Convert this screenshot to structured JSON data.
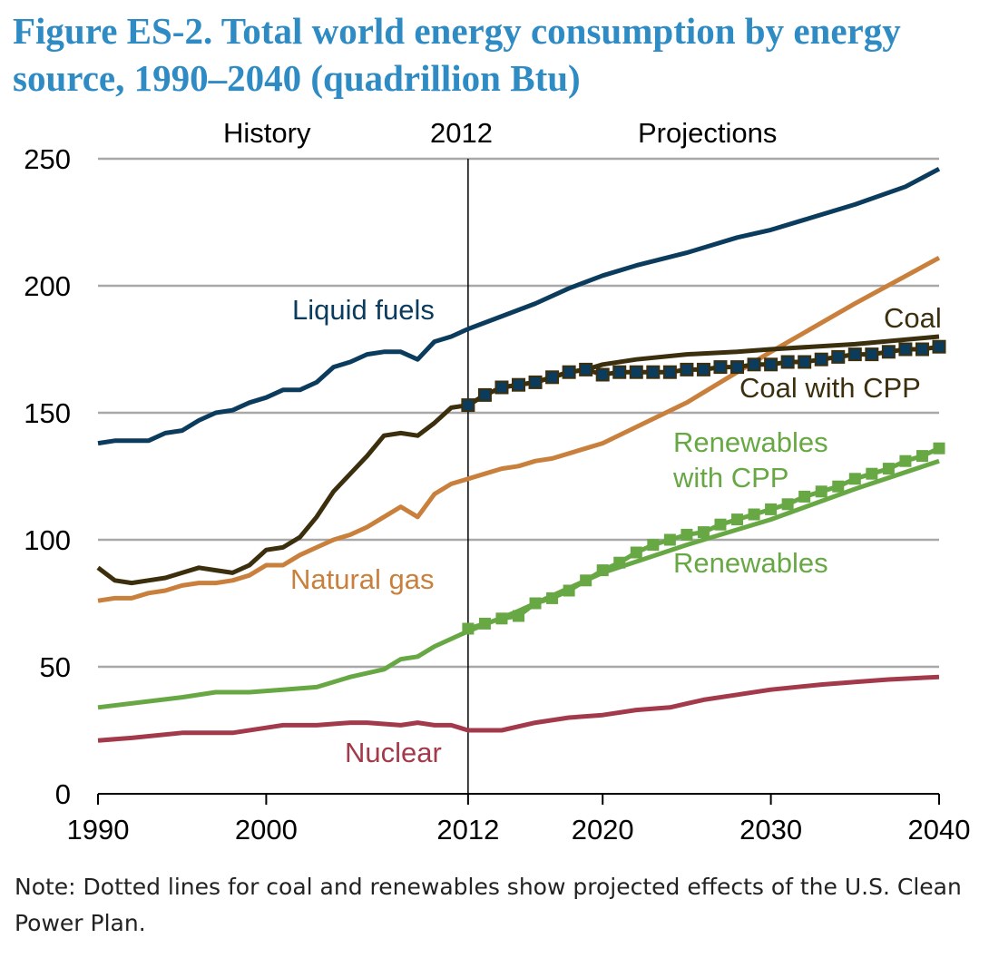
{
  "chart_data": {
    "type": "line",
    "title": "Figure ES-2. Total world energy consumption by energy source, 1990–2040 (quadrillion Btu)",
    "xlabel": "",
    "ylabel": "",
    "xlim": [
      1990,
      2040
    ],
    "ylim": [
      0,
      250
    ],
    "x_ticks": [
      "1990",
      "2000",
      "2012",
      "2020",
      "2030",
      "2040"
    ],
    "y_ticks": [
      "0",
      "50",
      "100",
      "150",
      "200",
      "250"
    ],
    "grid": "horizontal",
    "divider": {
      "x": 2012,
      "labels": {
        "left": "History",
        "center": "2012",
        "right": "Projections"
      }
    },
    "colors": {
      "liquid": "#0B3C5D",
      "coal": "#3B2F0E",
      "gas": "#C8803C",
      "renew": "#67A844",
      "nuclear": "#A33A4B"
    },
    "series": [
      {
        "name": "Liquid fuels",
        "color": "#0B3C5D",
        "x": [
          1990,
          1991,
          1992,
          1993,
          1994,
          1995,
          1996,
          1997,
          1998,
          1999,
          2000,
          2001,
          2002,
          2003,
          2004,
          2005,
          2006,
          2007,
          2008,
          2009,
          2010,
          2011,
          2012,
          2014,
          2016,
          2018,
          2020,
          2022,
          2025,
          2028,
          2030,
          2032,
          2035,
          2038,
          2040
        ],
        "y": [
          138,
          139,
          139,
          139,
          142,
          143,
          147,
          150,
          151,
          154,
          156,
          159,
          159,
          162,
          168,
          170,
          173,
          174,
          174,
          171,
          178,
          180,
          183,
          188,
          193,
          199,
          204,
          208,
          213,
          219,
          222,
          226,
          232,
          239,
          246
        ]
      },
      {
        "name": "Coal",
        "color": "#3B2F0E",
        "x": [
          1990,
          1991,
          1992,
          1993,
          1994,
          1995,
          1996,
          1997,
          1998,
          1999,
          2000,
          2001,
          2002,
          2003,
          2004,
          2005,
          2006,
          2007,
          2008,
          2009,
          2010,
          2011,
          2012,
          2013,
          2014,
          2015,
          2016,
          2017,
          2018,
          2019,
          2020,
          2022,
          2025,
          2028,
          2030,
          2035,
          2040
        ],
        "y": [
          89,
          84,
          83,
          84,
          85,
          87,
          89,
          88,
          87,
          90,
          96,
          97,
          101,
          109,
          119,
          126,
          133,
          141,
          142,
          141,
          146,
          152,
          153,
          157,
          160,
          161,
          162,
          164,
          166,
          167,
          169,
          171,
          173,
          174,
          175,
          177,
          180
        ]
      },
      {
        "name": "Coal with CPP",
        "color": "#3B2F0E",
        "marker": "#0B3C5D",
        "x": [
          2012,
          2013,
          2014,
          2015,
          2016,
          2017,
          2018,
          2019,
          2020,
          2021,
          2022,
          2023,
          2024,
          2025,
          2026,
          2027,
          2028,
          2029,
          2030,
          2031,
          2032,
          2033,
          2034,
          2035,
          2036,
          2037,
          2038,
          2039,
          2040
        ],
        "y": [
          153,
          157,
          160,
          161,
          162,
          164,
          166,
          167,
          165,
          166,
          166,
          166,
          166,
          167,
          167,
          168,
          168,
          169,
          169,
          170,
          170,
          171,
          172,
          173,
          173,
          174,
          175,
          175,
          176
        ]
      },
      {
        "name": "Natural gas",
        "color": "#C8803C",
        "x": [
          1990,
          1991,
          1992,
          1993,
          1994,
          1995,
          1996,
          1997,
          1998,
          1999,
          2000,
          2001,
          2002,
          2003,
          2004,
          2005,
          2006,
          2007,
          2008,
          2009,
          2010,
          2011,
          2012,
          2013,
          2014,
          2015,
          2016,
          2017,
          2018,
          2019,
          2020,
          2025,
          2030,
          2035,
          2040
        ],
        "y": [
          76,
          77,
          77,
          79,
          80,
          82,
          83,
          83,
          84,
          86,
          90,
          90,
          94,
          97,
          100,
          102,
          105,
          109,
          113,
          109,
          118,
          122,
          124,
          126,
          128,
          129,
          131,
          132,
          134,
          136,
          138,
          154,
          174,
          193,
          211
        ]
      },
      {
        "name": "Renewables",
        "color": "#67A844",
        "x": [
          1990,
          1995,
          1997,
          1999,
          2001,
          2003,
          2005,
          2007,
          2008,
          2009,
          2010,
          2012,
          2015,
          2020,
          2025,
          2030,
          2035,
          2040
        ],
        "y": [
          34,
          38,
          40,
          40,
          41,
          42,
          46,
          49,
          53,
          54,
          58,
          64,
          72,
          87,
          98,
          108,
          120,
          131
        ]
      },
      {
        "name": "Renewables with CPP",
        "color": "#67A844",
        "marker": "#67A844",
        "x": [
          2012,
          2013,
          2014,
          2015,
          2016,
          2017,
          2018,
          2019,
          2020,
          2021,
          2022,
          2023,
          2024,
          2025,
          2026,
          2027,
          2028,
          2029,
          2030,
          2031,
          2032,
          2033,
          2034,
          2035,
          2036,
          2037,
          2038,
          2039,
          2040
        ],
        "y": [
          65,
          67,
          69,
          70,
          75,
          77,
          80,
          84,
          88,
          91,
          95,
          98,
          100,
          102,
          103,
          106,
          108,
          110,
          112,
          114,
          117,
          119,
          121,
          124,
          126,
          128,
          131,
          133,
          136
        ]
      },
      {
        "name": "Nuclear",
        "color": "#A33A4B",
        "x": [
          1990,
          1992,
          1995,
          1998,
          2000,
          2001,
          2003,
          2005,
          2006,
          2008,
          2009,
          2010,
          2011,
          2012,
          2014,
          2016,
          2018,
          2020,
          2022,
          2024,
          2026,
          2028,
          2030,
          2033,
          2035,
          2037,
          2040
        ],
        "y": [
          21,
          22,
          24,
          24,
          26,
          27,
          27,
          28,
          28,
          27,
          28,
          27,
          27,
          25,
          25,
          28,
          30,
          31,
          33,
          34,
          37,
          39,
          41,
          43,
          44,
          45,
          46
        ]
      }
    ],
    "series_labels": [
      "Liquid fuels",
      "Coal",
      "Coal with CPP",
      "Natural gas",
      "Renewables with CPP",
      "Renewables",
      "Nuclear"
    ]
  },
  "note": "Note: Dotted lines for coal and renewables show projected effects of the U.S. Clean Power Plan."
}
